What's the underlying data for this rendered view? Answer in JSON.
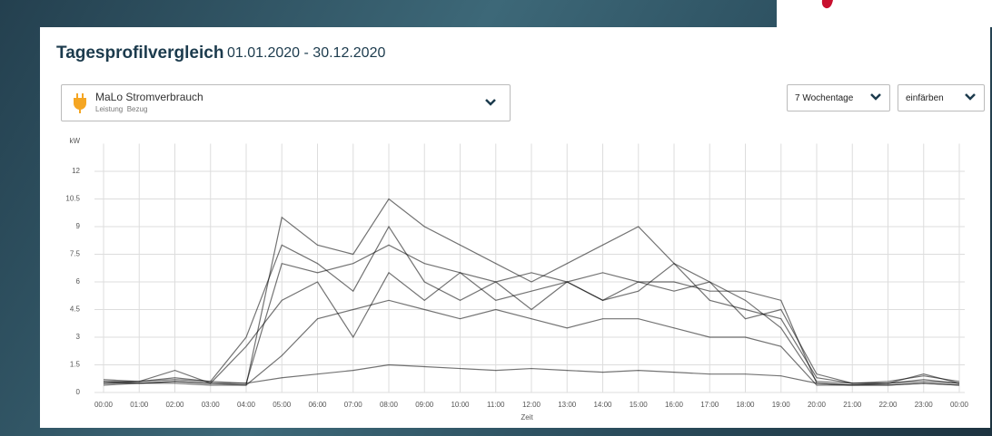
{
  "header": {
    "title": "Tagesprofilvergleich",
    "date_range": "01.01.2020 - 30.12.2020"
  },
  "selector": {
    "title": "MaLo Stromverbrauch",
    "tags": [
      "Leistung",
      "Bezug"
    ]
  },
  "buttons": [
    "7 Wochentage",
    "einfärben"
  ],
  "chart_data": {
    "type": "line",
    "y_label": "kW",
    "x_label": "Zeit",
    "categories": [
      "00:00",
      "01:00",
      "02:00",
      "03:00",
      "04:00",
      "05:00",
      "06:00",
      "07:00",
      "08:00",
      "09:00",
      "10:00",
      "11:00",
      "12:00",
      "13:00",
      "14:00",
      "15:00",
      "16:00",
      "17:00",
      "18:00",
      "19:00",
      "20:00",
      "21:00",
      "22:00",
      "23:00",
      "00:00"
    ],
    "ylim": [
      0,
      13.5
    ],
    "yticks": [
      0,
      1.5,
      3,
      4.5,
      6,
      7.5,
      9,
      10.5,
      12
    ],
    "grid": true,
    "series": [
      {
        "color": "#000000",
        "values": [
          0.6,
          0.6,
          0.7,
          0.6,
          0.5,
          7,
          6.5,
          7,
          8,
          7,
          6.5,
          6,
          6.5,
          6,
          6.5,
          6,
          6,
          5.5,
          5.5,
          5,
          0.5,
          0.4,
          0.5,
          0.6,
          0.5
        ]
      },
      {
        "color": "#000000",
        "values": [
          0.5,
          0.5,
          0.6,
          0.5,
          0.5,
          0.8,
          1,
          1.2,
          1.5,
          1.4,
          1.3,
          1.2,
          1.3,
          1.2,
          1.1,
          1.2,
          1.1,
          1,
          1,
          0.9,
          0.5,
          0.4,
          0.4,
          0.5,
          0.4
        ]
      },
      {
        "color": "#000000",
        "values": [
          0.7,
          0.6,
          0.8,
          0.6,
          3,
          8,
          7,
          5.5,
          9,
          6,
          5,
          6,
          4.5,
          6,
          5,
          5.5,
          7,
          5,
          4.5,
          4,
          0.8,
          0.5,
          0.6,
          0.9,
          0.6
        ]
      },
      {
        "color": "#000000",
        "values": [
          0.5,
          0.6,
          1.2,
          0.5,
          0.4,
          9.5,
          8,
          7.5,
          10.5,
          9,
          8,
          7,
          6,
          7,
          8,
          9,
          7,
          6,
          5,
          3.5,
          0.6,
          0.5,
          0.5,
          1,
          0.5
        ]
      },
      {
        "color": "#000000",
        "values": [
          0.4,
          0.5,
          0.5,
          0.4,
          0.4,
          2,
          4,
          4.5,
          5,
          4.5,
          4,
          4.5,
          4,
          3.5,
          4,
          4,
          3.5,
          3,
          3,
          2.5,
          0.4,
          0.4,
          0.4,
          0.5,
          0.4
        ]
      },
      {
        "color": "#000000",
        "values": [
          0.6,
          0.5,
          0.6,
          0.5,
          2.5,
          5,
          6,
          3,
          6.5,
          5,
          6.5,
          5,
          5.5,
          6,
          5,
          6,
          5.5,
          6,
          4,
          4.5,
          1,
          0.5,
          0.5,
          0.7,
          0.5
        ]
      }
    ]
  }
}
